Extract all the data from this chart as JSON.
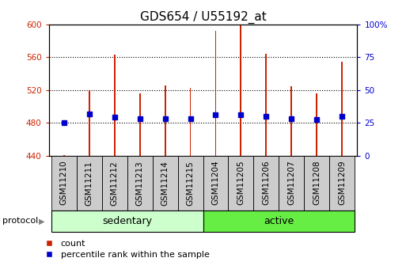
{
  "title": "GDS654 / U55192_at",
  "samples": [
    "GSM11210",
    "GSM11211",
    "GSM11212",
    "GSM11213",
    "GSM11214",
    "GSM11215",
    "GSM11204",
    "GSM11205",
    "GSM11206",
    "GSM11207",
    "GSM11208",
    "GSM11209"
  ],
  "groups": [
    "sedentary",
    "sedentary",
    "sedentary",
    "sedentary",
    "sedentary",
    "sedentary",
    "active",
    "active",
    "active",
    "active",
    "active",
    "active"
  ],
  "count_values": [
    441,
    520,
    563,
    516,
    526,
    523,
    592,
    600,
    564,
    525,
    516,
    555
  ],
  "percentile_values": [
    480,
    491,
    487,
    485,
    485,
    485,
    490,
    490,
    488,
    485,
    484,
    488
  ],
  "ymin": 440,
  "ymax": 600,
  "yticks": [
    440,
    480,
    520,
    560,
    600
  ],
  "right_yticks": [
    0,
    25,
    50,
    75,
    100
  ],
  "bar_color": "#cc2200",
  "percentile_color": "#0000cc",
  "sedentary_color": "#ccffcc",
  "active_color": "#66ee44",
  "bar_width": 0.06,
  "protocol_label": "protocol",
  "sedentary_label": "sedentary",
  "active_label": "active",
  "legend_count": "count",
  "legend_percentile": "percentile rank within the sample",
  "title_fontsize": 11,
  "tick_label_fontsize": 7.5,
  "axis_label_fontsize": 8,
  "xlabel_box_color": "#cccccc",
  "n_sedentary": 6,
  "n_active": 6
}
